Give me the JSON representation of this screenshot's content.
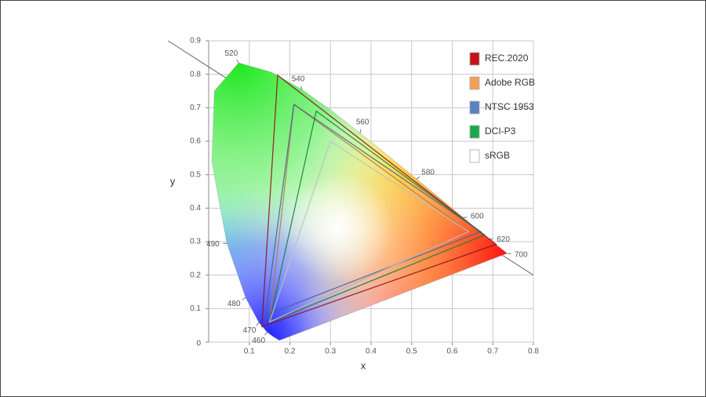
{
  "chart_data": {
    "type": "chromaticity",
    "x_label": "x",
    "y_label": "y",
    "xlim": [
      0,
      0.8
    ],
    "ylim": [
      0,
      0.9
    ],
    "xticks": [
      0.1,
      0.2,
      0.3,
      0.4,
      0.5,
      0.6,
      0.7,
      0.8
    ],
    "yticks": [
      0,
      0.1,
      0.2,
      0.3,
      0.4,
      0.5,
      0.6,
      0.7,
      0.8,
      0.9
    ],
    "grid": true,
    "locus": {
      "wavelengths": [
        null,
        null,
        460,
        470,
        480,
        490,
        null,
        null,
        520,
        null,
        540,
        null,
        560,
        null,
        580,
        null,
        600,
        620,
        700
      ],
      "x": [
        0.174,
        0.157,
        0.144,
        0.124,
        0.091,
        0.045,
        0.008,
        0.014,
        0.074,
        0.155,
        0.23,
        0.302,
        0.373,
        0.444,
        0.512,
        0.575,
        0.627,
        0.691,
        0.735
      ],
      "y": [
        0.005,
        0.018,
        0.03,
        0.058,
        0.133,
        0.295,
        0.538,
        0.75,
        0.834,
        0.806,
        0.754,
        0.692,
        0.624,
        0.555,
        0.487,
        0.424,
        0.372,
        0.308,
        0.265
      ]
    },
    "series": [
      {
        "name": "REC.2020",
        "color": "#c0141c",
        "x": [
          0.708,
          0.17,
          0.131
        ],
        "y": [
          0.292,
          0.797,
          0.046
        ]
      },
      {
        "name": "Adobe RGB",
        "color": "#f5a05a",
        "x": [
          0.64,
          0.21,
          0.15
        ],
        "y": [
          0.33,
          0.71,
          0.06
        ]
      },
      {
        "name": "NTSC 1953",
        "color": "#5b82c0",
        "x": [
          0.67,
          0.21,
          0.14
        ],
        "y": [
          0.33,
          0.71,
          0.08
        ]
      },
      {
        "name": "DCI-P3",
        "color": "#1aa84a",
        "x": [
          0.68,
          0.265,
          0.15
        ],
        "y": [
          0.32,
          0.69,
          0.06
        ]
      },
      {
        "name": "sRGB",
        "color": "#ffffff",
        "x": [
          0.64,
          0.3,
          0.15
        ],
        "y": [
          0.33,
          0.6,
          0.06
        ]
      }
    ]
  }
}
